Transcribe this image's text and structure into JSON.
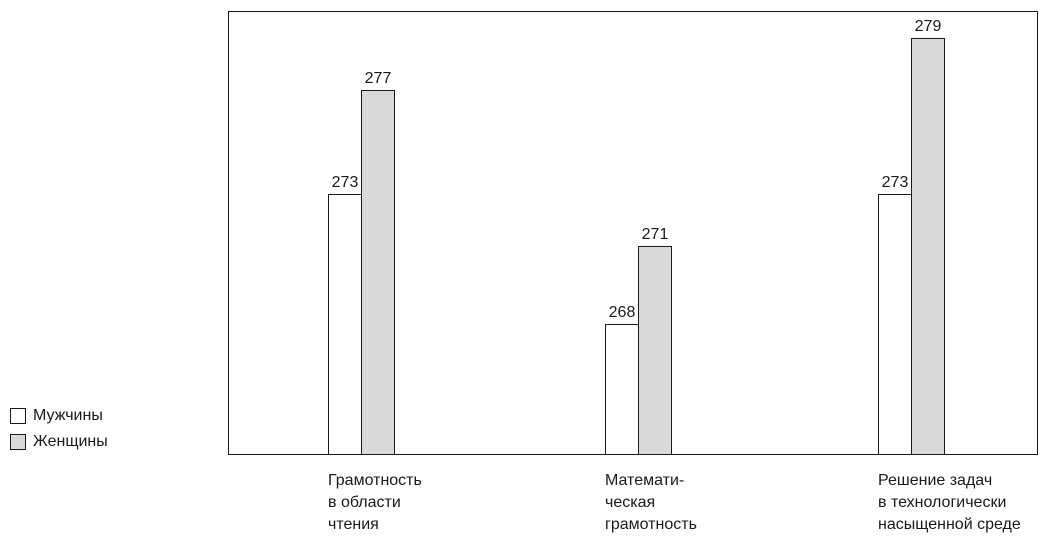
{
  "chart_data": {
    "type": "bar",
    "categories": [
      "Грамотность\nв области\nчтения",
      "Математи-\nческая\nграмотность",
      "Решение задач\nв технологически\nнасыщенной среде"
    ],
    "series": [
      {
        "name": "Мужчины",
        "values": [
          273,
          268,
          273
        ],
        "color": "#ffffff"
      },
      {
        "name": "Женщины",
        "values": [
          277,
          271,
          279
        ],
        "color": "#d9d9d9"
      }
    ],
    "ylim": [
      263,
      280
    ],
    "grid": false,
    "legend_position": "left-bottom",
    "data_labels": true
  }
}
